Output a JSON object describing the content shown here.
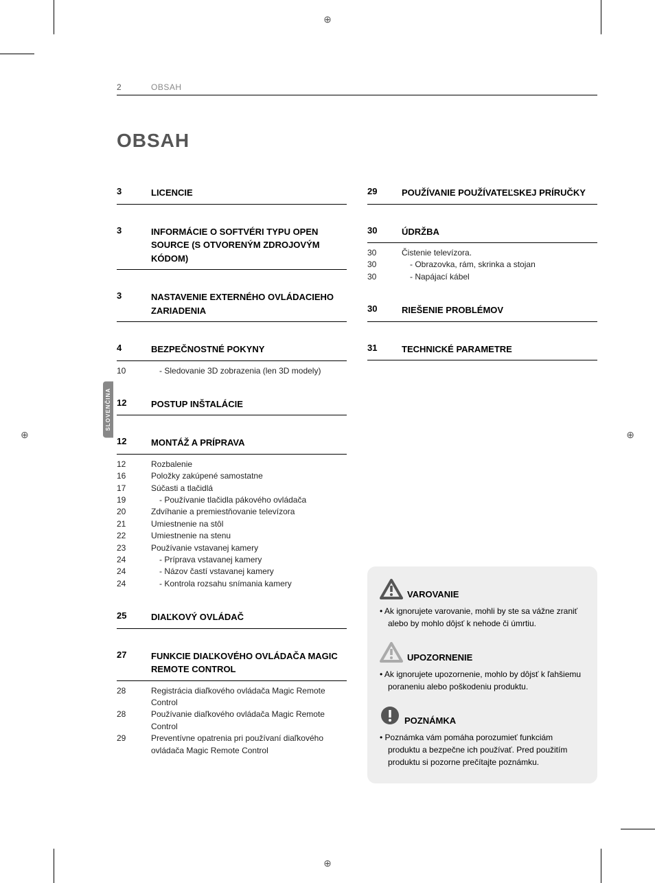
{
  "header": {
    "page_number": "2",
    "section_label": "OBSAH"
  },
  "title": "OBSAH",
  "language_tab": "SLOVENČINA",
  "left_column": [
    {
      "page": "3",
      "title": "LICENCIE",
      "items": []
    },
    {
      "page": "3",
      "title": "INFORMÁCIE O SOFTVÉRI TYPU OPEN SOURCE (S OTVORENÝM ZDROJOVÝM KÓDOM)",
      "items": []
    },
    {
      "page": "3",
      "title": "NASTAVENIE EXTERNÉHO OVLÁDACIEHO ZARIADENIA",
      "items": []
    },
    {
      "page": "4",
      "title": "BEZPEČNOSTNÉ POKYNY",
      "items": [
        {
          "page": "10",
          "title": "Sledovanie 3D zobrazenia (len 3D modely)",
          "indent": true
        }
      ]
    },
    {
      "page": "12",
      "title": "POSTUP INŠTALÁCIE",
      "items": []
    },
    {
      "page": "12",
      "title": "MONTÁŽ A PRÍPRAVA",
      "items": [
        {
          "page": "12",
          "title": "Rozbalenie",
          "indent": false
        },
        {
          "page": "16",
          "title": "Položky zakúpené samostatne",
          "indent": false
        },
        {
          "page": "17",
          "title": "Súčasti a tlačidlá",
          "indent": false
        },
        {
          "page": "19",
          "title": "Používanie tlačidla pákového ovládača",
          "indent": true
        },
        {
          "page": "20",
          "title": "Zdvíhanie a premiestňovanie televízora",
          "indent": false
        },
        {
          "page": "21",
          "title": "Umiestnenie na stôl",
          "indent": false
        },
        {
          "page": "22",
          "title": "Umiestnenie na stenu",
          "indent": false
        },
        {
          "page": "23",
          "title": "Používanie vstavanej kamery",
          "indent": false
        },
        {
          "page": "24",
          "title": "Príprava vstavanej kamery",
          "indent": true
        },
        {
          "page": "24",
          "title": "Názov častí vstavanej kamery",
          "indent": true
        },
        {
          "page": "24",
          "title": "Kontrola rozsahu snímania kamery",
          "indent": true
        }
      ]
    },
    {
      "page": "25",
      "title": "DIAĽKOVÝ OVLÁDAČ",
      "items": []
    },
    {
      "page": "27",
      "title": "FUNKCIE DIAĽKOVÉHO OVLÁDAČA MAGIC REMOTE CONTROL",
      "items": [
        {
          "page": "28",
          "title": "Registrácia diaľkového ovládača Magic Remote Control",
          "indent": false
        },
        {
          "page": "28",
          "title": "Používanie diaľkového ovládača Magic Remote Control",
          "indent": false
        },
        {
          "page": "29",
          "title": "Preventívne opatrenia pri používaní diaľkového ovládača Magic Remote Control",
          "indent": false
        }
      ]
    }
  ],
  "right_column": [
    {
      "page": "29",
      "title": "POUŽÍVANIE POUŽÍVATEĽSKEJ PRÍRUČKY",
      "items": []
    },
    {
      "page": "30",
      "title": "ÚDRŽBA",
      "items": [
        {
          "page": "30",
          "title": "Čistenie televízora.",
          "indent": false
        },
        {
          "page": "30",
          "title": "Obrazovka, rám, skrinka a stojan",
          "indent": true
        },
        {
          "page": "30",
          "title": "Napájací kábel",
          "indent": true
        }
      ]
    },
    {
      "page": "30",
      "title": "RIEŠENIE PROBLÉMOV",
      "items": []
    },
    {
      "page": "31",
      "title": "TECHNICKÉ PARAMETRE",
      "items": []
    }
  ],
  "notices": {
    "warning": {
      "title": "VAROVANIE",
      "text": "Ak ignorujete varovanie, mohli by ste sa vážne zraniť alebo by mohlo dôjsť k nehode či úmrtiu."
    },
    "caution": {
      "title": "UPOZORNENIE",
      "text": "Ak ignorujete upozornenie, mohlo by dôjsť k ľahšiemu poraneniu alebo poškodeniu produktu."
    },
    "note": {
      "title": "POZNÁMKA",
      "text": "Poznámka vám pomáha porozumieť funkciám produktu a bezpečne ich používať. Pred použitím produktu si pozorne prečítajte poznámku."
    }
  },
  "colors": {
    "notice_bg": "#eeeeee",
    "warning_icon": "#555555",
    "caution_icon": "#aaaaaa",
    "note_icon": "#555555",
    "lang_tab_bg": "#888888"
  }
}
